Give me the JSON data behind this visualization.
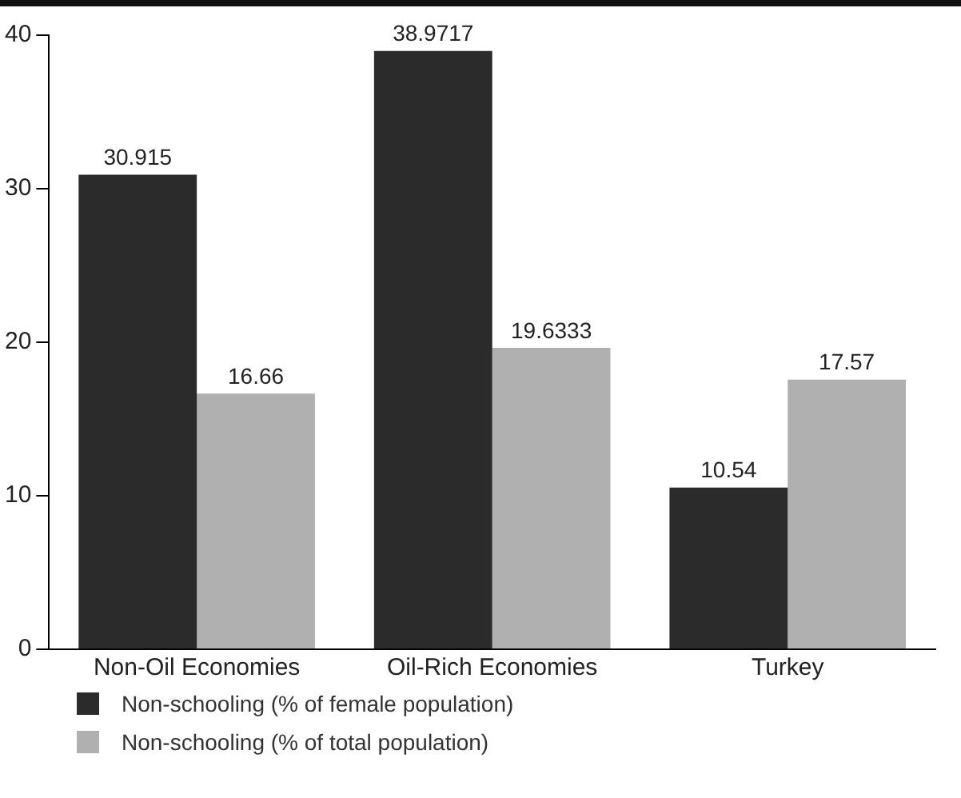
{
  "chart_data": {
    "type": "bar",
    "categories": [
      "Non-Oil Economies",
      "Oil-Rich Economies",
      "Turkey"
    ],
    "series": [
      {
        "name": "Non-schooling (% of female population)",
        "color": "#2b2b2b",
        "values": [
          30.915,
          38.9717,
          10.54
        ]
      },
      {
        "name": "Non-schooling (% of total population)",
        "color": "#b0b0b0",
        "values": [
          16.66,
          19.6333,
          17.57
        ]
      }
    ],
    "ylim": [
      0,
      40
    ],
    "yticks": [
      0,
      10,
      20,
      30,
      40
    ],
    "grid": false,
    "legend": "bottom",
    "data_labels": true
  }
}
